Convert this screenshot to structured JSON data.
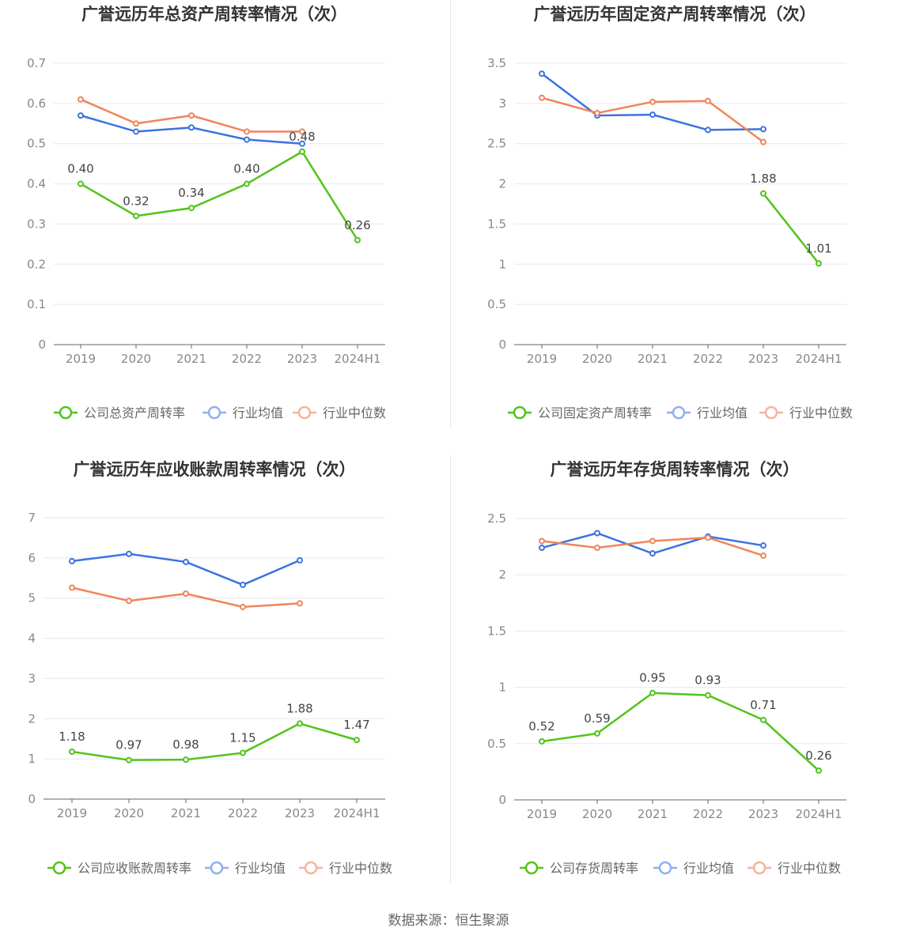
{
  "colors": {
    "company": "#52c41a",
    "avg": "#3b73e0",
    "median": "#f0845a",
    "avg_legend": "#8fb0f0",
    "median_legend": "#f7b39a"
  },
  "chart_data": [
    {
      "type": "line",
      "title": "广誉远历年总资产周转率情况（次）",
      "categories": [
        "2019",
        "2020",
        "2021",
        "2022",
        "2023",
        "2024H1"
      ],
      "ylim": [
        0,
        0.7
      ],
      "yticks": [
        "0",
        "0.1",
        "0.2",
        "0.3",
        "0.4",
        "0.5",
        "0.6",
        "0.7"
      ],
      "series": [
        {
          "name": "公司总资产周转率",
          "values": [
            0.4,
            0.32,
            0.34,
            0.4,
            0.48,
            0.26
          ],
          "labels": [
            "0.40",
            "0.32",
            "0.34",
            "0.40",
            "0.48",
            "0.26"
          ]
        },
        {
          "name": "行业均值",
          "values": [
            0.57,
            0.53,
            0.54,
            0.51,
            0.5,
            null
          ]
        },
        {
          "name": "行业中位数",
          "values": [
            0.61,
            0.55,
            0.57,
            0.53,
            0.53,
            null
          ]
        }
      ]
    },
    {
      "type": "line",
      "title": "广誉远历年固定资产周转率情况（次）",
      "categories": [
        "2019",
        "2020",
        "2021",
        "2022",
        "2023",
        "2024H1"
      ],
      "ylim": [
        0,
        3.5
      ],
      "yticks": [
        "0",
        "0.5",
        "1",
        "1.5",
        "2",
        "2.5",
        "3",
        "3.5"
      ],
      "series": [
        {
          "name": "公司固定资产周转率",
          "values": [
            null,
            null,
            null,
            null,
            1.88,
            1.01
          ],
          "labels": [
            null,
            null,
            null,
            null,
            "1.88",
            "1.01"
          ]
        },
        {
          "name": "行业均值",
          "values": [
            3.37,
            2.85,
            2.86,
            2.67,
            2.68,
            null
          ]
        },
        {
          "name": "行业中位数",
          "values": [
            3.07,
            2.88,
            3.02,
            3.03,
            2.52,
            null
          ]
        }
      ]
    },
    {
      "type": "line",
      "title": "广誉远历年应收账款周转率情况（次）",
      "categories": [
        "2019",
        "2020",
        "2021",
        "2022",
        "2023",
        "2024H1"
      ],
      "ylim": [
        0,
        7
      ],
      "yticks": [
        "0",
        "1",
        "2",
        "3",
        "4",
        "5",
        "6",
        "7"
      ],
      "series": [
        {
          "name": "公司应收账款周转率",
          "values": [
            1.18,
            0.97,
            0.98,
            1.15,
            1.88,
            1.47
          ],
          "labels": [
            "1.18",
            "0.97",
            "0.98",
            "1.15",
            "1.88",
            "1.47"
          ]
        },
        {
          "name": "行业均值",
          "values": [
            5.92,
            6.1,
            5.9,
            5.33,
            5.94,
            null
          ]
        },
        {
          "name": "行业中位数",
          "values": [
            5.26,
            4.93,
            5.11,
            4.78,
            4.87,
            null
          ]
        }
      ]
    },
    {
      "type": "line",
      "title": "广誉远历年存货周转率情况（次）",
      "categories": [
        "2019",
        "2020",
        "2021",
        "2022",
        "2023",
        "2024H1"
      ],
      "ylim": [
        0,
        2.5
      ],
      "yticks": [
        "0",
        "0.5",
        "1",
        "1.5",
        "2",
        "2.5"
      ],
      "series": [
        {
          "name": "公司存货周转率",
          "values": [
            0.52,
            0.59,
            0.95,
            0.93,
            0.71,
            0.26
          ],
          "labels": [
            "0.52",
            "0.59",
            "0.95",
            "0.93",
            "0.71",
            "0.26"
          ]
        },
        {
          "name": "行业均值",
          "values": [
            2.24,
            2.37,
            2.19,
            2.34,
            2.26,
            null
          ]
        },
        {
          "name": "行业中位数",
          "values": [
            2.3,
            2.24,
            2.3,
            2.33,
            2.17,
            null
          ]
        }
      ]
    }
  ],
  "source": "数据来源：恒生聚源"
}
